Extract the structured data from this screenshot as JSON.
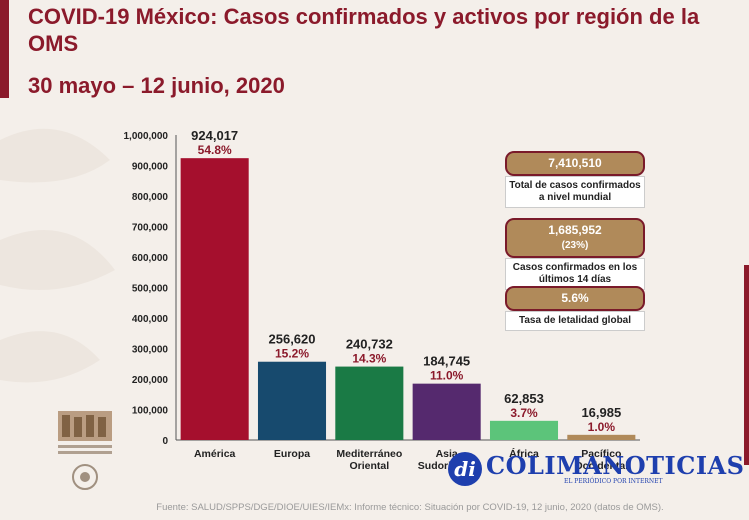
{
  "header": {
    "title": "COVID-19 México: Casos confirmados y activos por región de la OMS",
    "subtitle": "30 mayo – 12 junio, 2020"
  },
  "chart_data": {
    "type": "bar",
    "title": "COVID-19 México: Casos confirmados y activos por región de la OMS",
    "categories": [
      "América",
      "Europa",
      "Mediterráneo Oriental",
      "Asia Sudoriental",
      "África",
      "Pacífico Occidental"
    ],
    "category_lines": [
      [
        "América"
      ],
      [
        "Europa"
      ],
      [
        "Mediterráneo",
        "Oriental"
      ],
      [
        "Asia",
        "Sudoriental"
      ],
      [
        "África"
      ],
      [
        "Pacífico",
        "Occidental"
      ]
    ],
    "values": [
      924017,
      256620,
      240732,
      184745,
      62853,
      16985
    ],
    "value_labels": [
      "924,017",
      "256,620",
      "240,732",
      "184,745",
      "62,853",
      "16,985"
    ],
    "percent_labels": [
      "54.8%",
      "15.2%",
      "14.3%",
      "11.0%",
      "3.7%",
      "1.0%"
    ],
    "colors": [
      "#a50f2d",
      "#174a6e",
      "#1a7a45",
      "#55296e",
      "#5cc47a",
      "#b08a5a"
    ],
    "percent_color": "#8b1a2b",
    "ylim": [
      0,
      1000000
    ],
    "yticks": [
      0,
      100000,
      200000,
      300000,
      400000,
      500000,
      600000,
      700000,
      800000,
      900000,
      1000000
    ],
    "ytick_labels": [
      "0",
      "100,000",
      "200,000",
      "300,000",
      "400,000",
      "500,000",
      "600,000",
      "700,000",
      "800,000",
      "900,000",
      "1,000,000"
    ],
    "grid": false,
    "xlabel": "",
    "ylabel": ""
  },
  "info_boxes": [
    {
      "value": "7,410,510",
      "sub": "",
      "note": "Total de casos confirmados a nivel mundial"
    },
    {
      "value": "1,685,952",
      "sub": "(23%)",
      "note": "Casos confirmados en los últimos 14 días"
    },
    {
      "value": "5.6%",
      "sub": "",
      "note": "Tasa de letalidad global"
    }
  ],
  "watermark": {
    "brand_initials": "di",
    "brand_name": "COLIMANOTICIAS",
    "brand_tagline": "EL PERIÓDICO POR INTERNET"
  },
  "logo": {
    "icon": "government-seal-icon"
  },
  "source": "Fuente: SALUD/SPPS/DGE/DIOE/UIES/IEMx: Informe técnico: Situación por COVID-19, 12 junio, 2020 (datos de OMS)."
}
